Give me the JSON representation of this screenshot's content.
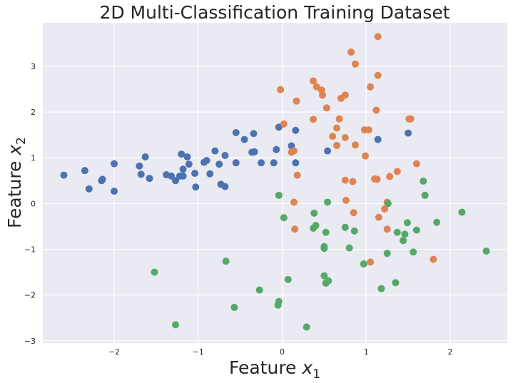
{
  "chart_data": {
    "type": "scatter",
    "title": "2D Multi-Classification Training Dataset",
    "xlabel_text": "Feature ",
    "xlabel_var": "x",
    "xlabel_sub": "1",
    "ylabel_text": "Feature ",
    "ylabel_var": "x",
    "ylabel_sub": "2",
    "xlim": [
      -2.85,
      2.68
    ],
    "ylim": [
      -3.05,
      3.95
    ],
    "x_ticks": [
      -2,
      -1,
      0,
      1,
      2
    ],
    "y_ticks": [
      -3,
      -2,
      -1,
      0,
      1,
      2,
      3
    ],
    "grid": true,
    "legend": "none",
    "colors": {
      "background": "#eaeaf2",
      "grid": "#ffffff",
      "text": "#262626"
    },
    "series": [
      {
        "color": "#4c72b0",
        "points": [
          [
            -2.6,
            0.62
          ],
          [
            -2.35,
            0.72
          ],
          [
            -2.3,
            0.32
          ],
          [
            -2.15,
            0.5
          ],
          [
            -2.14,
            0.53
          ],
          [
            -2.0,
            0.87
          ],
          [
            -2.0,
            0.27
          ],
          [
            -1.7,
            0.82
          ],
          [
            -1.68,
            0.64
          ],
          [
            -1.63,
            1.02
          ],
          [
            -1.58,
            0.55
          ],
          [
            -1.38,
            0.63
          ],
          [
            -1.32,
            0.6
          ],
          [
            -1.27,
            0.5
          ],
          [
            -1.22,
            0.6
          ],
          [
            -1.2,
            1.08
          ],
          [
            -1.18,
            0.75
          ],
          [
            -1.18,
            0.6
          ],
          [
            -1.13,
            1.02
          ],
          [
            -1.11,
            0.86
          ],
          [
            -1.04,
            0.66
          ],
          [
            -1.03,
            0.36
          ],
          [
            -0.93,
            0.9
          ],
          [
            -0.9,
            0.94
          ],
          [
            -0.86,
            0.65
          ],
          [
            -0.8,
            1.15
          ],
          [
            -0.75,
            0.86
          ],
          [
            -0.73,
            0.42
          ],
          [
            -0.68,
            1.05
          ],
          [
            -0.68,
            0.37
          ],
          [
            -0.55,
            1.55
          ],
          [
            -0.55,
            0.89
          ],
          [
            -0.45,
            1.4
          ],
          [
            -0.36,
            1.12
          ],
          [
            -0.34,
            1.53
          ],
          [
            -0.33,
            1.13
          ],
          [
            -0.25,
            0.89
          ],
          [
            -0.1,
            0.89
          ],
          [
            -0.07,
            1.18
          ],
          [
            -0.04,
            1.67
          ],
          [
            0.11,
            1.26
          ],
          [
            0.16,
            1.6
          ],
          [
            0.16,
            0.89
          ],
          [
            0.54,
            1.15
          ],
          [
            1.14,
            1.4
          ],
          [
            1.5,
            1.54
          ]
        ]
      },
      {
        "color": "#dd8452",
        "points": [
          [
            -0.02,
            2.49
          ],
          [
            0.02,
            1.74
          ],
          [
            0.11,
            1.12
          ],
          [
            0.14,
            1.15
          ],
          [
            0.14,
            0.03
          ],
          [
            0.15,
            -0.56
          ],
          [
            0.17,
            2.24
          ],
          [
            0.18,
            0.62
          ],
          [
            0.37,
            2.68
          ],
          [
            0.37,
            1.84
          ],
          [
            0.41,
            2.55
          ],
          [
            0.47,
            2.48
          ],
          [
            0.48,
            2.37
          ],
          [
            0.53,
            2.09
          ],
          [
            0.6,
            1.47
          ],
          [
            0.65,
            1.65
          ],
          [
            0.65,
            1.27
          ],
          [
            0.68,
            1.85
          ],
          [
            0.7,
            2.3
          ],
          [
            0.75,
            2.37
          ],
          [
            0.75,
            1.44
          ],
          [
            0.75,
            0.51
          ],
          [
            0.76,
            0.07
          ],
          [
            0.82,
            3.31
          ],
          [
            0.84,
            0.48
          ],
          [
            0.85,
            -0.2
          ],
          [
            0.87,
            3.05
          ],
          [
            0.87,
            1.28
          ],
          [
            0.98,
            1.61
          ],
          [
            0.99,
            1.04
          ],
          [
            1.03,
            1.61
          ],
          [
            1.05,
            2.55
          ],
          [
            1.05,
            -1.28
          ],
          [
            1.1,
            0.54
          ],
          [
            1.12,
            2.04
          ],
          [
            1.13,
            0.53
          ],
          [
            1.14,
            3.65
          ],
          [
            1.14,
            2.8
          ],
          [
            1.15,
            -0.3
          ],
          [
            1.22,
            -0.12
          ],
          [
            1.25,
            0.03
          ],
          [
            1.25,
            -0.56
          ],
          [
            1.28,
            0.59
          ],
          [
            1.37,
            0.7
          ],
          [
            1.51,
            1.85
          ],
          [
            1.53,
            1.85
          ],
          [
            1.6,
            0.87
          ],
          [
            1.8,
            -1.22
          ]
        ]
      },
      {
        "color": "#55a868",
        "points": [
          [
            -1.52,
            -1.5
          ],
          [
            -1.27,
            -2.65
          ],
          [
            -0.67,
            -1.26
          ],
          [
            -0.57,
            -2.27
          ],
          [
            -0.27,
            -1.89
          ],
          [
            -0.05,
            -2.22
          ],
          [
            -0.04,
            -2.14
          ],
          [
            -0.04,
            0.18
          ],
          [
            0.02,
            -0.31
          ],
          [
            0.07,
            -1.66
          ],
          [
            0.29,
            -2.7
          ],
          [
            0.37,
            -0.54
          ],
          [
            0.38,
            -0.21
          ],
          [
            0.4,
            -0.48
          ],
          [
            0.5,
            -0.94
          ],
          [
            0.5,
            -0.98
          ],
          [
            0.5,
            -1.58
          ],
          [
            0.52,
            -1.74
          ],
          [
            0.52,
            -0.63
          ],
          [
            0.54,
            0.03
          ],
          [
            0.55,
            -1.69
          ],
          [
            0.75,
            -0.52
          ],
          [
            0.8,
            -0.97
          ],
          [
            0.86,
            -0.6
          ],
          [
            0.97,
            -1.32
          ],
          [
            1.18,
            -1.86
          ],
          [
            1.25,
            -1.09
          ],
          [
            1.26,
            0.0
          ],
          [
            1.35,
            -1.73
          ],
          [
            1.37,
            -0.63
          ],
          [
            1.44,
            -0.81
          ],
          [
            1.46,
            -0.67
          ],
          [
            1.49,
            -0.42
          ],
          [
            1.56,
            -1.06
          ],
          [
            1.6,
            -0.58
          ],
          [
            1.68,
            0.49
          ],
          [
            1.7,
            0.18
          ],
          [
            1.84,
            -0.41
          ],
          [
            2.14,
            -0.19
          ],
          [
            2.43,
            -1.04
          ]
        ]
      }
    ]
  }
}
